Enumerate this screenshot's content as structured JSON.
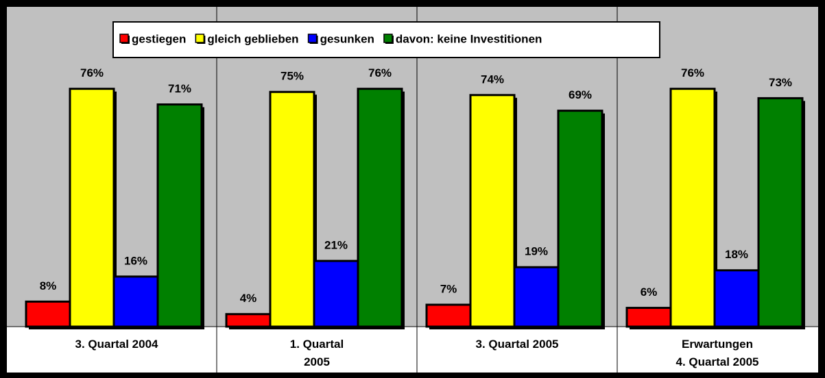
{
  "chart_data": {
    "type": "bar",
    "categories": [
      "3. Quartal 2004",
      "1. Quartal\n2005",
      "3. Quartal 2005",
      "Erwartungen\n4. Quartal 2005"
    ],
    "series": [
      {
        "name": "gestiegen",
        "color": "#ff0000",
        "values": [
          8,
          4,
          7,
          6
        ],
        "value_labels": [
          "8%",
          "4%",
          "7%",
          "6%"
        ]
      },
      {
        "name": "gleich geblieben",
        "color": "#ffff00",
        "values": [
          76,
          75,
          74,
          76
        ],
        "value_labels": [
          "76%",
          "75%",
          "74%",
          "76%"
        ]
      },
      {
        "name": "gesunken",
        "color": "#0000ff",
        "values": [
          16,
          21,
          19,
          18
        ],
        "value_labels": [
          "16%",
          "21%",
          "19%",
          "18%"
        ]
      },
      {
        "name": "davon: keine Investitionen",
        "color": "#008000",
        "values": [
          71,
          76,
          69,
          73
        ],
        "value_labels": [
          "71%",
          "76%",
          "69%",
          "73%"
        ]
      }
    ],
    "ylim": [
      0,
      100
    ],
    "legend": "top"
  }
}
